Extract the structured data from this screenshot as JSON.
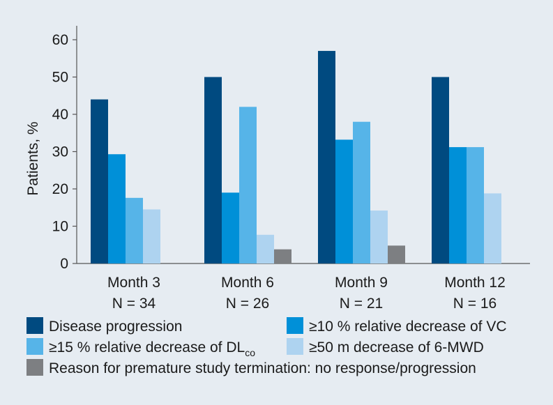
{
  "chart_data": {
    "type": "bar",
    "title": "",
    "xlabel": "",
    "ylabel": "Patients, %",
    "ylim": [
      0,
      60
    ],
    "yticks": [
      0,
      10,
      20,
      30,
      40,
      50,
      60
    ],
    "grid": false,
    "categories": [
      {
        "label": "Month 3",
        "n": "N = 34"
      },
      {
        "label": "Month 6",
        "n": "N = 26"
      },
      {
        "label": "Month 9",
        "n": "N = 21"
      },
      {
        "label": "Month 12",
        "n": "N = 16"
      }
    ],
    "series": [
      {
        "name": "Disease progression",
        "color": "#004a80",
        "values": [
          44,
          50,
          57,
          50
        ]
      },
      {
        "name": "≥10 % relative decrease of VC",
        "color": "#0090d8",
        "values": [
          29.3,
          19,
          33.2,
          31.2
        ]
      },
      {
        "name": "≥15 % relative decrease of DL",
        "name_sub": "co",
        "color": "#56b4e8",
        "values": [
          17.6,
          42,
          38,
          31.2
        ]
      },
      {
        "name": "≥50 m decrease of 6-MWD",
        "color": "#aed3f0",
        "values": [
          14.5,
          7.7,
          14.2,
          18.8
        ]
      },
      {
        "name": "Reason for premature study termination: no response/progression",
        "color": "#7d7f82",
        "values": [
          0,
          3.8,
          4.8,
          0
        ]
      }
    ],
    "legend_position": "bottom"
  }
}
